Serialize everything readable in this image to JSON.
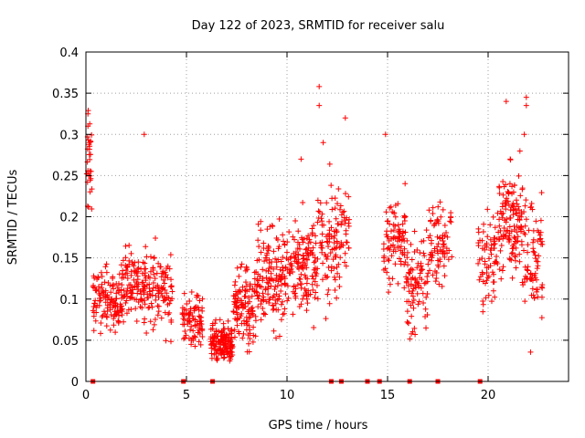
{
  "chart_data": {
    "type": "scatter",
    "title": "Day 122 of 2023, SRMTID for receiver salu",
    "xlabel": "GPS time / hours",
    "ylabel": "SRMTID / TECUs",
    "xlim": [
      0,
      24
    ],
    "ylim": [
      0,
      0.4
    ],
    "grid": true,
    "marker": "+",
    "color": "#ff0000",
    "x_ticks": [
      0,
      5,
      10,
      15,
      20
    ],
    "x_tick_labels": [
      "0",
      "5",
      "10",
      "15",
      "20"
    ],
    "y_ticks": [
      0,
      0.05,
      0.1,
      0.15,
      0.2,
      0.25,
      0.3,
      0.35,
      0.4
    ],
    "y_tick_labels": [
      "0",
      "0.05",
      "0.1",
      "0.15",
      "0.2",
      "0.25",
      "0.3",
      "0.35",
      "0.4"
    ],
    "zero_markers_x": [
      0.35,
      4.85,
      6.3,
      12.2,
      12.7,
      14.0,
      14.6,
      16.1,
      17.5,
      19.6
    ],
    "clusters": [
      {
        "x": [
          0.0,
          0.35
        ],
        "center": 0.26,
        "spread": 0.05,
        "n": 30
      },
      {
        "x": [
          0.35,
          1.8
        ],
        "center": 0.1,
        "spread": 0.03,
        "n": 130
      },
      {
        "x": [
          1.8,
          3.0
        ],
        "center": 0.12,
        "spread": 0.035,
        "n": 110
      },
      {
        "x": [
          3.0,
          4.3
        ],
        "center": 0.11,
        "spread": 0.04,
        "n": 100
      },
      {
        "x": [
          4.8,
          5.8
        ],
        "center": 0.075,
        "spread": 0.025,
        "n": 90
      },
      {
        "x": [
          6.2,
          7.3
        ],
        "center": 0.045,
        "spread": 0.02,
        "n": 150
      },
      {
        "x": [
          7.3,
          8.5
        ],
        "center": 0.09,
        "spread": 0.04,
        "n": 120
      },
      {
        "x": [
          8.5,
          10.0
        ],
        "center": 0.13,
        "spread": 0.05,
        "n": 150
      },
      {
        "x": [
          10.0,
          11.5
        ],
        "center": 0.14,
        "spread": 0.05,
        "n": 140
      },
      {
        "x": [
          11.5,
          12.5
        ],
        "center": 0.17,
        "spread": 0.06,
        "n": 80
      },
      {
        "x": [
          12.5,
          13.1
        ],
        "center": 0.19,
        "spread": 0.06,
        "n": 40
      },
      {
        "x": [
          14.8,
          15.9
        ],
        "center": 0.17,
        "spread": 0.04,
        "n": 90
      },
      {
        "x": [
          15.9,
          17.0
        ],
        "center": 0.12,
        "spread": 0.05,
        "n": 90
      },
      {
        "x": [
          17.0,
          18.2
        ],
        "center": 0.17,
        "spread": 0.04,
        "n": 80
      },
      {
        "x": [
          19.5,
          20.5
        ],
        "center": 0.15,
        "spread": 0.05,
        "n": 70
      },
      {
        "x": [
          20.5,
          21.7
        ],
        "center": 0.19,
        "spread": 0.05,
        "n": 130
      },
      {
        "x": [
          21.7,
          22.7
        ],
        "center": 0.15,
        "spread": 0.06,
        "n": 80
      }
    ],
    "outliers": [
      {
        "x": 0.1,
        "y": 0.325
      },
      {
        "x": 0.1,
        "y": 0.31
      },
      {
        "x": 2.9,
        "y": 0.3
      },
      {
        "x": 11.6,
        "y": 0.358
      },
      {
        "x": 11.6,
        "y": 0.335
      },
      {
        "x": 12.9,
        "y": 0.32
      },
      {
        "x": 14.9,
        "y": 0.3
      },
      {
        "x": 20.9,
        "y": 0.34
      },
      {
        "x": 21.9,
        "y": 0.345
      },
      {
        "x": 21.9,
        "y": 0.335
      },
      {
        "x": 21.8,
        "y": 0.3
      },
      {
        "x": 11.8,
        "y": 0.29
      },
      {
        "x": 10.7,
        "y": 0.27
      },
      {
        "x": 21.1,
        "y": 0.27
      }
    ]
  }
}
